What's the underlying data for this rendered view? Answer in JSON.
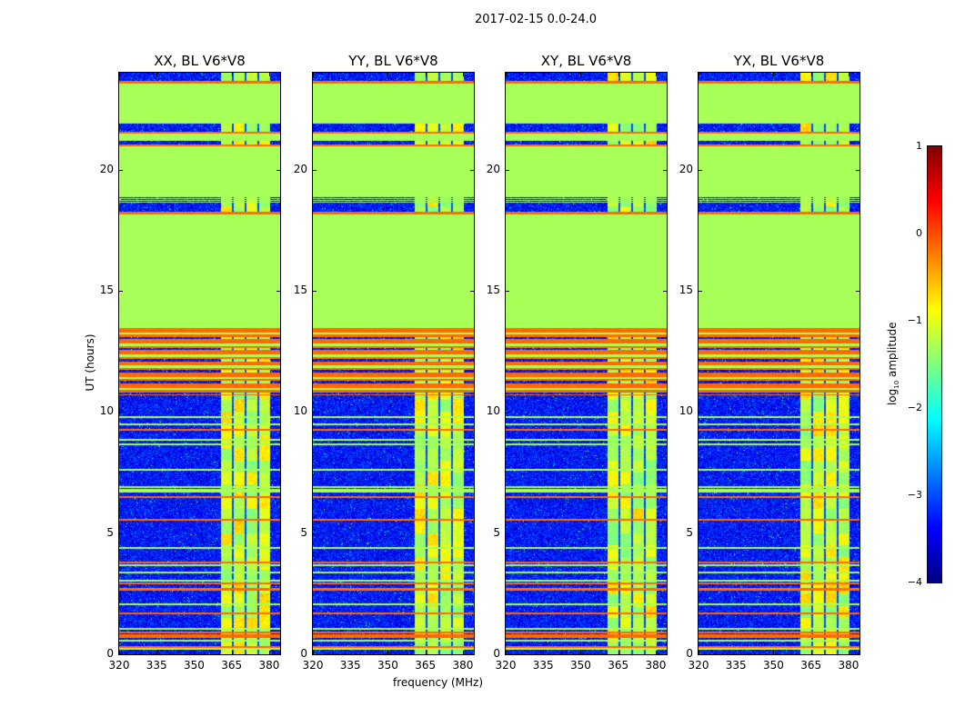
{
  "suptitle": "2017-02-15 0.0-24.0",
  "chart_data": {
    "type": "heatmap",
    "xlabel": "frequency (MHz)",
    "ylabel": "UT (hours)",
    "xlim": [
      320,
      384.4
    ],
    "ylim": [
      0,
      24
    ],
    "xticks": [
      "320",
      "335",
      "350",
      "365",
      "380"
    ],
    "xtick_values": [
      320,
      335,
      350,
      365,
      380
    ],
    "yticks": [
      "0",
      "5",
      "10",
      "15",
      "20"
    ],
    "ytick_values": [
      0,
      5,
      10,
      15,
      20
    ],
    "panels": [
      {
        "title": "XX, BL V6*V8",
        "seed": 11
      },
      {
        "title": "YY, BL V6*V8",
        "seed": 23
      },
      {
        "title": "XY, BL V6*V8",
        "seed": 37
      },
      {
        "title": "YX, BL V6*V8",
        "seed": 51
      }
    ],
    "colorbar": {
      "label_main": "log",
      "label_sub": "10",
      "label_rest": " amplitude",
      "range": [
        -4,
        1
      ],
      "ticks": [
        "1",
        "0",
        "−1",
        "−2",
        "−3",
        "−4"
      ],
      "tick_values": [
        1,
        0,
        -1,
        -2,
        -3,
        -4
      ],
      "colormap": "jet"
    },
    "signal_band_MHz": [
      360.7,
      380.3
    ],
    "band_gaps_MHz": [
      365.4,
      370.5,
      375.6
    ],
    "levels": {
      "noise": -3.3,
      "flat": -1.3,
      "rfi": -0.15,
      "band": -1.3
    },
    "segments_UT": [
      [
        23.66,
        24.0,
        "noise"
      ],
      [
        23.55,
        23.66,
        "rfi"
      ],
      [
        21.9,
        23.55,
        "flat"
      ],
      [
        21.55,
        21.9,
        "noise"
      ],
      [
        21.5,
        21.58,
        "rfi"
      ],
      [
        21.2,
        21.5,
        "flat"
      ],
      [
        21.05,
        21.2,
        "noise"
      ],
      [
        20.98,
        21.05,
        "rfi"
      ],
      [
        18.85,
        20.98,
        "flat"
      ],
      [
        18.6,
        18.85,
        "lines"
      ],
      [
        18.25,
        18.6,
        "noise"
      ],
      [
        18.15,
        18.25,
        "rfi"
      ],
      [
        13.45,
        18.15,
        "flat"
      ],
      [
        10.7,
        13.45,
        "stripes"
      ],
      [
        0.0,
        10.7,
        "noise"
      ]
    ],
    "lines_UT": [
      [
        9.8,
        "flat"
      ],
      [
        9.5,
        "flat"
      ],
      [
        9.25,
        "rfi"
      ],
      [
        8.85,
        "flat"
      ],
      [
        8.65,
        "flat"
      ],
      [
        7.6,
        "flat"
      ],
      [
        6.9,
        "flat"
      ],
      [
        6.8,
        "flat"
      ],
      [
        6.7,
        "flat"
      ],
      [
        6.5,
        "rfi"
      ],
      [
        5.55,
        "rfi"
      ],
      [
        4.4,
        "flat"
      ],
      [
        3.79,
        "rfi"
      ],
      [
        3.67,
        "flat"
      ],
      [
        3.37,
        "flat"
      ],
      [
        3.04,
        "flat"
      ],
      [
        2.93,
        "rfi"
      ],
      [
        2.7,
        "rfi"
      ],
      [
        2.65,
        "rfi"
      ],
      [
        2.06,
        "flat"
      ],
      [
        1.69,
        "rfi"
      ],
      [
        1.05,
        "flat"
      ],
      [
        0.9,
        "rfi"
      ],
      [
        0.78,
        "rfi"
      ],
      [
        0.72,
        "rfi"
      ],
      [
        0.55,
        "flat"
      ],
      [
        0.3,
        "rfi"
      ],
      [
        0.22,
        "flat"
      ]
    ]
  }
}
